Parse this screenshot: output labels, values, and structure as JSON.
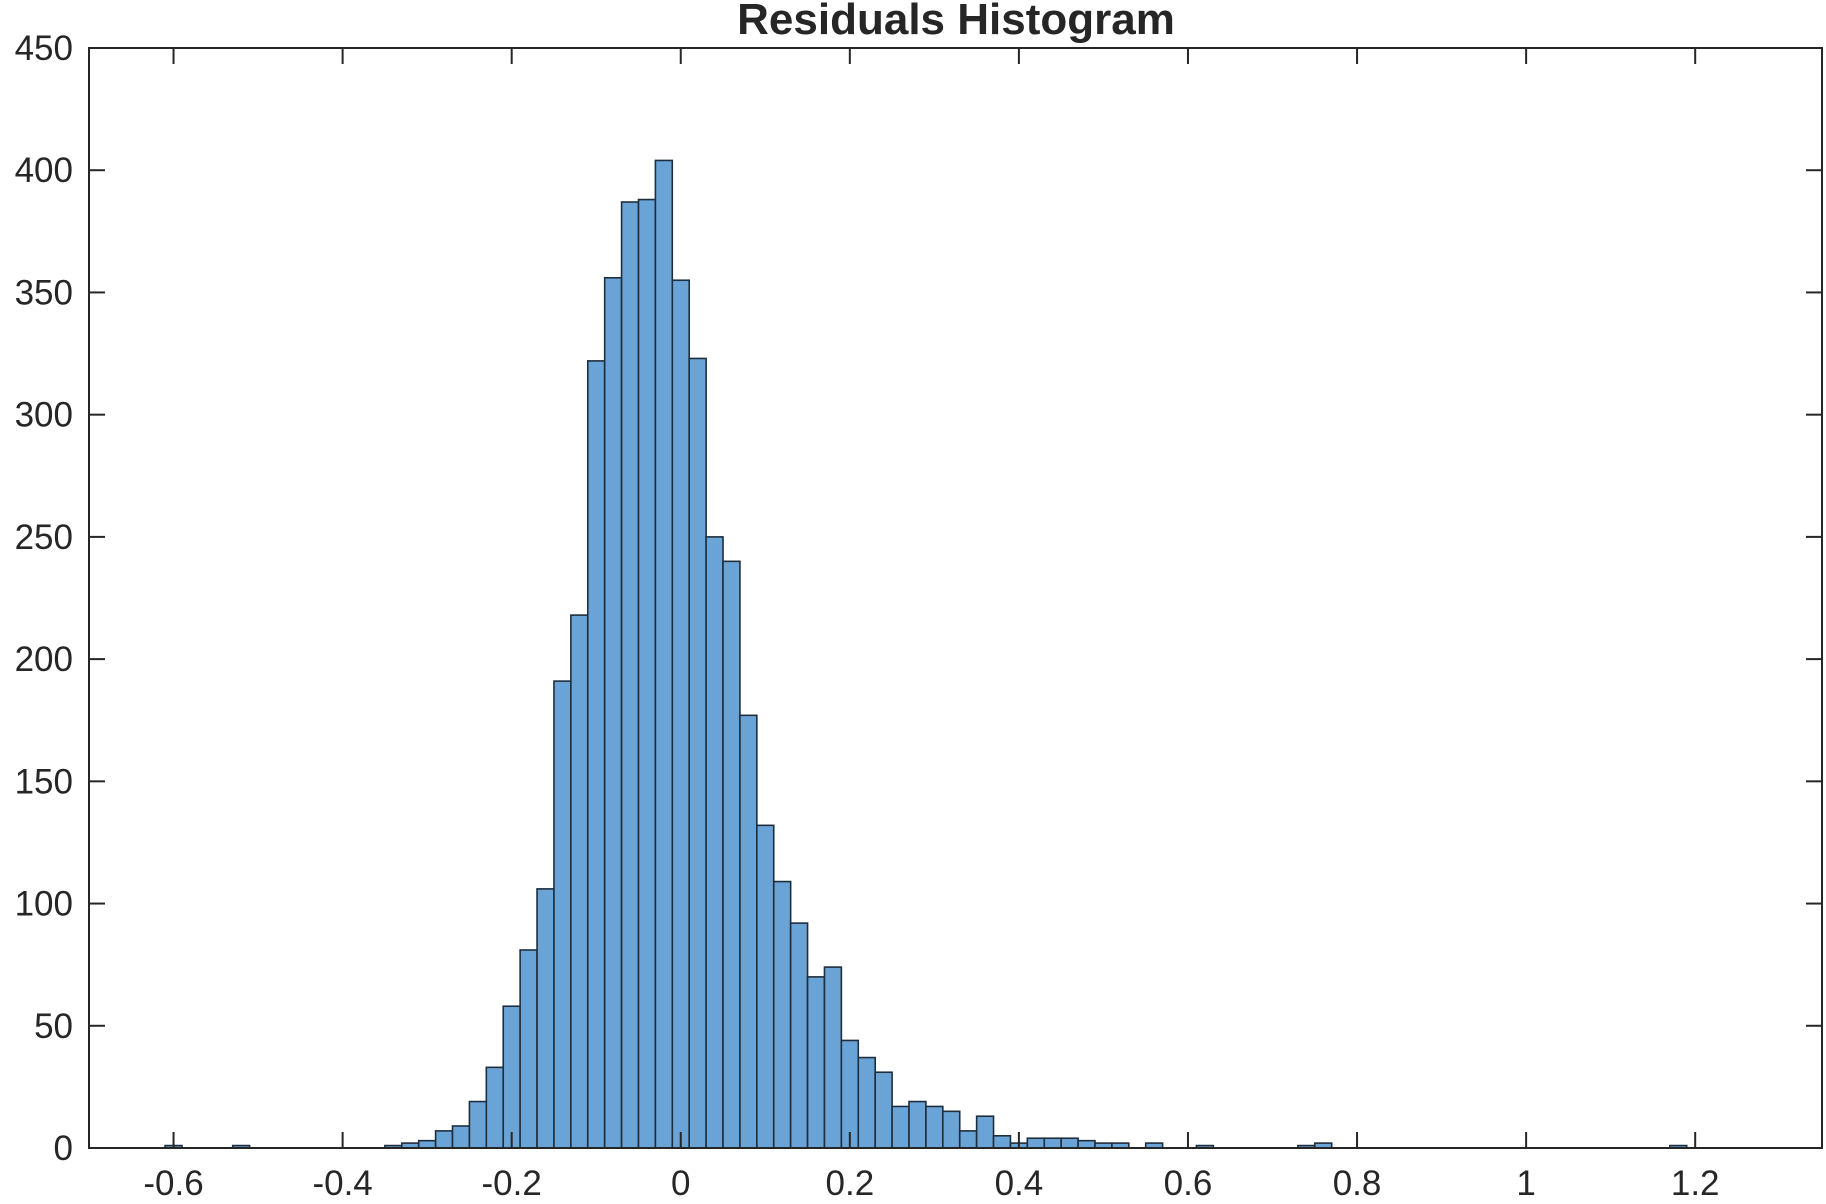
{
  "chart_data": {
    "type": "bar",
    "title": "Residuals Histogram",
    "xlabel": "",
    "ylabel": "",
    "xlim": [
      -0.7,
      1.35
    ],
    "ylim": [
      0,
      450
    ],
    "xticks": [
      -0.6,
      -0.4,
      -0.2,
      0,
      0.2,
      0.4,
      0.6,
      0.8,
      1,
      1.2
    ],
    "xtick_labels": [
      "-0.6",
      "-0.4",
      "-0.2",
      "0",
      "0.2",
      "0.4",
      "0.6",
      "0.8",
      "1",
      "1.2"
    ],
    "yticks": [
      0,
      50,
      100,
      150,
      200,
      250,
      300,
      350,
      400,
      450
    ],
    "ytick_labels": [
      "0",
      "50",
      "100",
      "150",
      "200",
      "250",
      "300",
      "350",
      "400",
      "450"
    ],
    "grid": false,
    "bar_color": "#6aa3d5",
    "edge_color": "#1f2e3d",
    "bin_edges_start": -0.61,
    "bin_width": 0.02,
    "counts": [
      1,
      0,
      0,
      0,
      1,
      0,
      0,
      0,
      0,
      0,
      0,
      0,
      0,
      1,
      2,
      3,
      7,
      9,
      19,
      33,
      58,
      81,
      106,
      191,
      218,
      322,
      356,
      387,
      388,
      404,
      355,
      323,
      250,
      240,
      177,
      132,
      109,
      92,
      70,
      74,
      44,
      37,
      31,
      17,
      19,
      17,
      15,
      7,
      13,
      5,
      2,
      4,
      4,
      4,
      3,
      2,
      2,
      0,
      2,
      0,
      0,
      1,
      0,
      0,
      0,
      0,
      0,
      1,
      2,
      0,
      0,
      0,
      0,
      0,
      0,
      0,
      0,
      0,
      0,
      0,
      0,
      0,
      0,
      0,
      0,
      0,
      0,
      0,
      0,
      1
    ]
  }
}
